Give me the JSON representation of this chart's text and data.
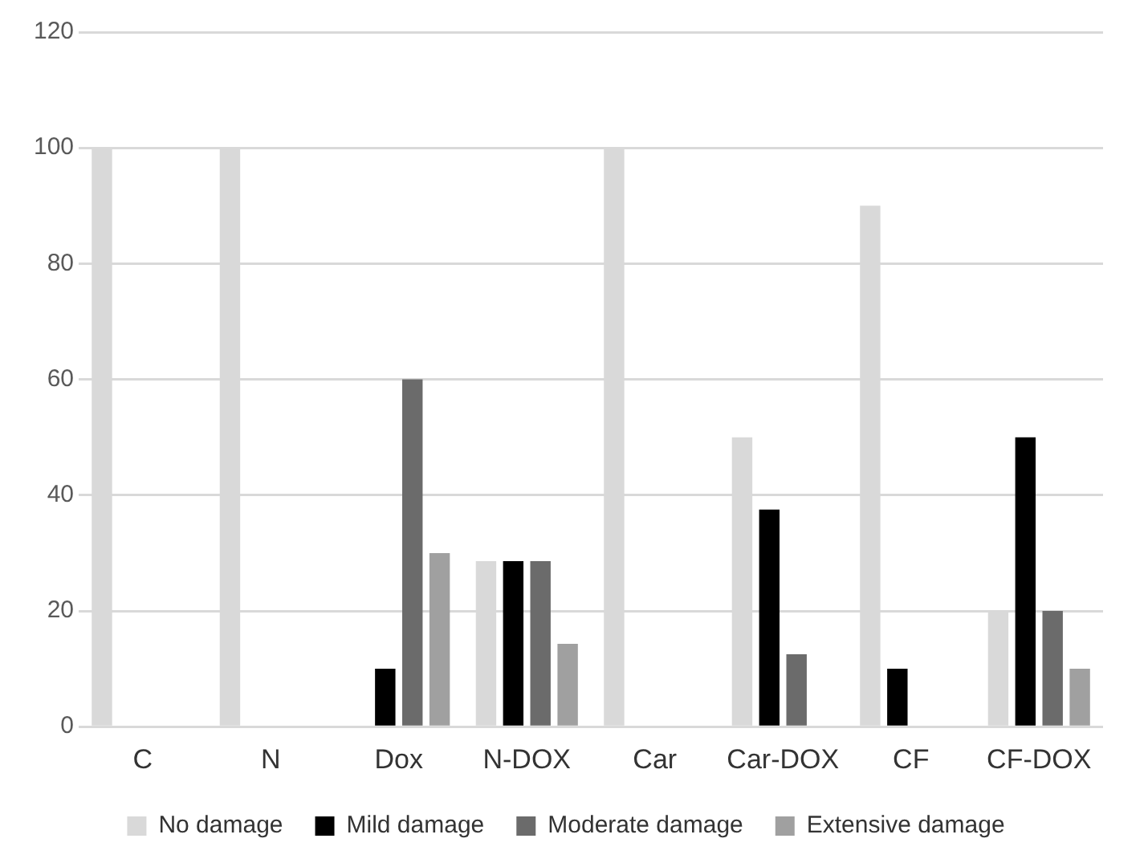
{
  "chart_data": {
    "type": "bar",
    "categories": [
      "C",
      "N",
      "Dox",
      "N-DOX",
      "Car",
      "Car-DOX",
      "CF",
      "CF-DOX"
    ],
    "series": [
      {
        "name": "No damage",
        "color": "#d9d9d9",
        "values": [
          100,
          100,
          0,
          28.6,
          100,
          50,
          90,
          20
        ]
      },
      {
        "name": "Mild damage",
        "color": "#000000",
        "values": [
          0,
          0,
          10,
          28.6,
          0,
          37.5,
          10,
          50
        ]
      },
      {
        "name": "Moderate damage",
        "color": "#6b6b6b",
        "values": [
          0,
          0,
          60,
          28.6,
          0,
          12.5,
          0,
          20
        ]
      },
      {
        "name": "Extensive damage",
        "color": "#a0a0a0",
        "values": [
          0,
          0,
          30,
          14.3,
          0,
          0,
          0,
          10
        ]
      }
    ],
    "ylim": [
      0,
      120
    ],
    "yticks": [
      0,
      20,
      40,
      60,
      80,
      100,
      120
    ],
    "grid": "y",
    "legend": "bottom"
  }
}
